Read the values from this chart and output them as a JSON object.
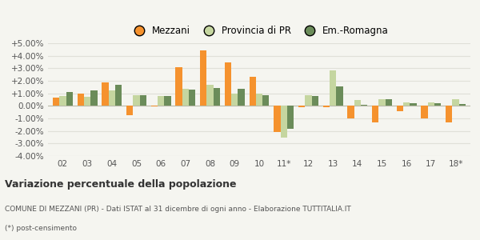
{
  "categories": [
    "02",
    "03",
    "04",
    "05",
    "06",
    "07",
    "08",
    "09",
    "10",
    "11*",
    "12",
    "13",
    "14",
    "15",
    "16",
    "17",
    "18*"
  ],
  "mezzani": [
    0.65,
    1.0,
    1.85,
    -0.75,
    -0.05,
    3.1,
    4.4,
    3.45,
    2.35,
    -2.1,
    -0.1,
    -0.1,
    -1.0,
    -1.35,
    -0.4,
    -1.0,
    -1.3
  ],
  "provincia": [
    0.8,
    0.75,
    1.25,
    0.85,
    0.8,
    1.35,
    1.65,
    1.0,
    1.0,
    -2.55,
    0.85,
    2.8,
    0.5,
    0.55,
    0.25,
    0.3,
    0.55
  ],
  "emilia": [
    1.1,
    1.25,
    1.65,
    0.85,
    0.8,
    1.3,
    1.45,
    1.35,
    0.85,
    -1.85,
    0.8,
    1.55,
    0.1,
    0.55,
    0.2,
    0.2,
    0.15
  ],
  "color_mezzani": "#f5922e",
  "color_provincia": "#c5d6a0",
  "color_emilia": "#6b8c5a",
  "bg_color": "#f5f5f0",
  "grid_color": "#e0e0d8",
  "ylim": [
    -4.0,
    5.0
  ],
  "yticks": [
    -4.0,
    -3.0,
    -2.0,
    -1.0,
    0.0,
    1.0,
    2.0,
    3.0,
    4.0,
    5.0
  ],
  "title": "Variazione percentuale della popolazione",
  "subtitle": "COMUNE DI MEZZANI (PR) - Dati ISTAT al 31 dicembre di ogni anno - Elaborazione TUTTITALIA.IT",
  "footnote": "(*) post-censimento",
  "legend_labels": [
    "Mezzani",
    "Provincia di PR",
    "Em.-Romagna"
  ]
}
